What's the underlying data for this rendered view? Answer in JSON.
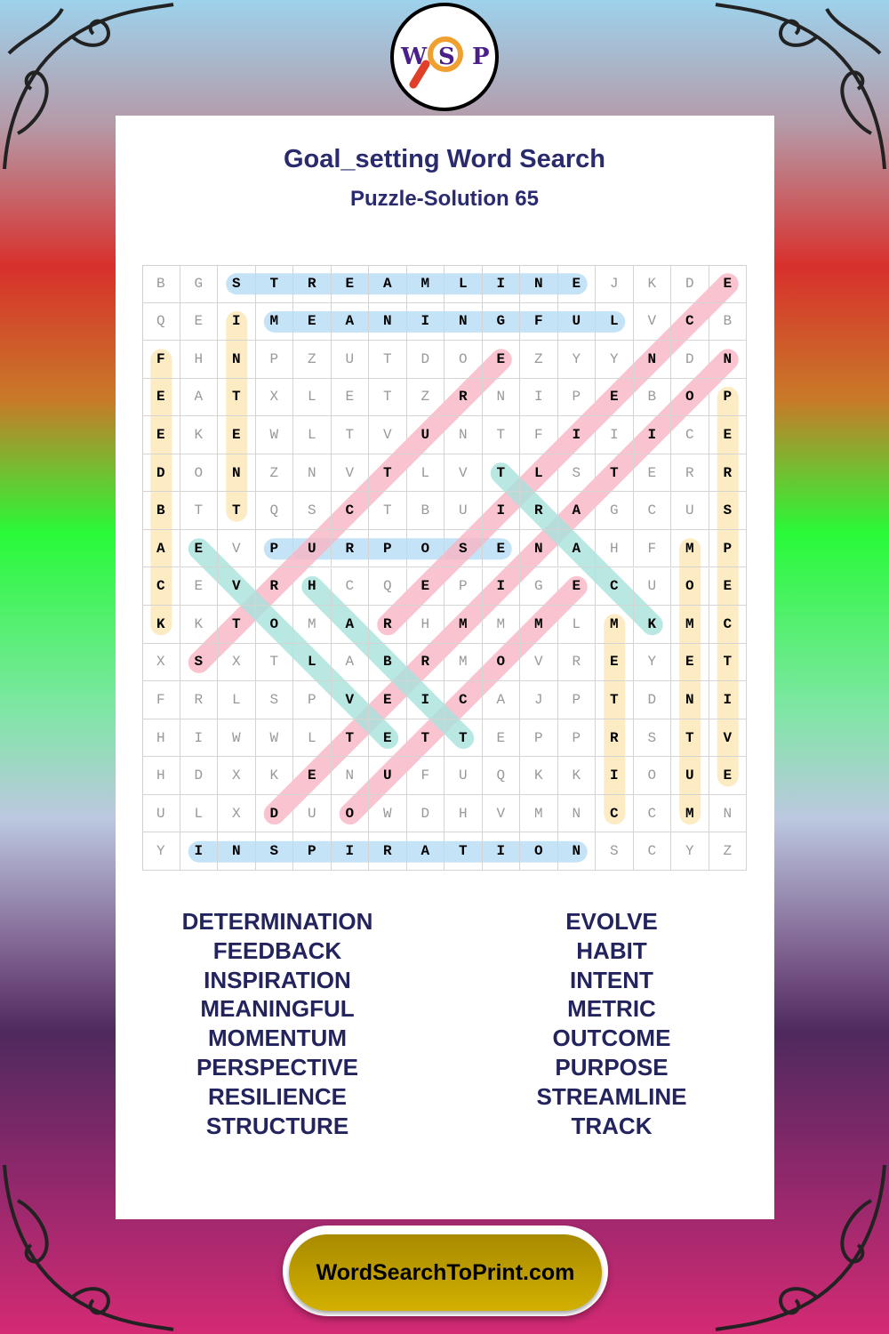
{
  "logo": {
    "letters": [
      "W",
      "S",
      "P"
    ]
  },
  "header": {
    "title": "Goal_setting Word Search",
    "subtitle": "Puzzle-Solution 65"
  },
  "grid": [
    "BGSTREAMLINEJKDE",
    "QEIMEANINGFULVCB",
    "FHNPZUTDOEZYYNDN",
    "EATXLETZRNIPEBOP",
    "EKEWLTVUNTFIIICE",
    "DONZNVTLVTLSTERR",
    "BTTQSCTBUIRAGCUS",
    "AEVPURPOSENAHFMP",
    "CEVRHCQEPIGECUOE",
    "KKTOMARHMMMLMKMC",
    "XSXTLABRMOVREYET",
    "FRLSPVEICAJPTDNI",
    "HIWWLTETTEPPRSTV",
    "HDXKENUFUQKKIOUE",
    "ULXDUOWDHVMNCCMN",
    "YINSPIRATIONSCYZ"
  ],
  "solutions": [
    {
      "word": "STREAMLINE",
      "start": [
        0,
        2
      ],
      "end": [
        0,
        11
      ],
      "color": "#b6dcf5"
    },
    {
      "word": "MEANINGFUL",
      "start": [
        1,
        3
      ],
      "end": [
        1,
        12
      ],
      "color": "#b6dcf5"
    },
    {
      "word": "PURPOSE",
      "start": [
        7,
        3
      ],
      "end": [
        7,
        9
      ],
      "color": "#b6dcf5"
    },
    {
      "word": "INSPIRATION",
      "start": [
        15,
        1
      ],
      "end": [
        15,
        11
      ],
      "color": "#b6dcf5"
    },
    {
      "word": "FEEDBACK",
      "start": [
        2,
        0
      ],
      "end": [
        9,
        0
      ],
      "color": "#fbe6b4"
    },
    {
      "word": "INTENT",
      "start": [
        1,
        2
      ],
      "end": [
        6,
        2
      ],
      "color": "#fbe6b4"
    },
    {
      "word": "PERSPECTIVE",
      "start": [
        3,
        15
      ],
      "end": [
        13,
        15
      ],
      "color": "#fbe6b4"
    },
    {
      "word": "MOMENTUM",
      "start": [
        7,
        14
      ],
      "end": [
        14,
        14
      ],
      "color": "#fbe6b4"
    },
    {
      "word": "METRIC",
      "start": [
        9,
        12
      ],
      "end": [
        14,
        12
      ],
      "color": "#fbe6b4"
    },
    {
      "word": "STRUCTURE",
      "start": [
        10,
        1
      ],
      "end": [
        2,
        9
      ],
      "color": "#f7b4c4"
    },
    {
      "word": "DETERMINATION",
      "start": [
        14,
        3
      ],
      "end": [
        2,
        15
      ],
      "color": "#f7b4c4"
    },
    {
      "word": "RESILIENCE",
      "start": [
        9,
        6
      ],
      "end": [
        0,
        15
      ],
      "color": "#f7b4c4"
    },
    {
      "word": "OUTCOME",
      "start": [
        14,
        5
      ],
      "end": [
        8,
        11
      ],
      "color": "#f7b4c4"
    },
    {
      "word": "EVOLVE",
      "start": [
        7,
        1
      ],
      "end": [
        12,
        6
      ],
      "color": "#a8e2dc"
    },
    {
      "word": "HABIT",
      "start": [
        8,
        4
      ],
      "end": [
        12,
        8
      ],
      "color": "#a8e2dc"
    },
    {
      "word": "TRACK",
      "start": [
        5,
        9
      ],
      "end": [
        9,
        13
      ],
      "color": "#a8e2dc"
    }
  ],
  "word_list": {
    "left": [
      "DETERMINATION",
      "FEEDBACK",
      "INSPIRATION",
      "MEANINGFUL",
      "MOMENTUM",
      "PERSPECTIVE",
      "RESILIENCE",
      "STRUCTURE"
    ],
    "right": [
      "EVOLVE",
      "HABIT",
      "INTENT",
      "METRIC",
      "OUTCOME",
      "PURPOSE",
      "STREAMLINE",
      "TRACK"
    ]
  },
  "footer": {
    "label": "WordSearchToPrint.com"
  }
}
